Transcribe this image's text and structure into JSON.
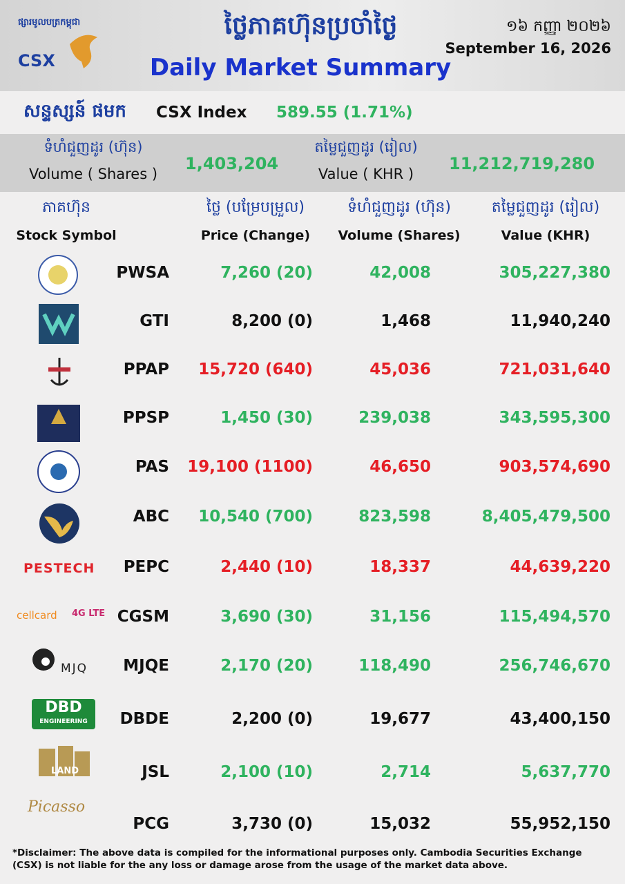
{
  "header": {
    "brand_khmer": "ផ្សារមូលបត្រកម្ពុជា",
    "brand": "CSX",
    "title_khmer": "ថ្លៃភាគហ៊ុនប្រចាំថ្ងៃ",
    "title": "Daily Market Summary",
    "date_khmer": "១៦ កញ្ញា ២០២៦",
    "date": "September 16, 2026"
  },
  "index": {
    "label_khmer": "សន្ទស្សន៍ ផមក",
    "label": "CSX Index",
    "value": "589.55 (1.71%)"
  },
  "summary": {
    "volume_label_khmer": "ទំហំជួញដូរ (ហ៊ុន)",
    "volume_label": "Volume ( Shares )",
    "volume": "1,403,204",
    "value_label_khmer": "តម្លៃជួញដូរ (រៀល)",
    "value_label": "Value ( KHR )",
    "value": "11,212,719,280"
  },
  "table": {
    "headers_khmer": [
      "ភាគហ៊ុន",
      "ថ្លៃ (បម្រែបម្រួល)",
      "ទំហំជួញដូរ (ហ៊ុន)",
      "តម្លៃជួញដូរ (រៀល)"
    ],
    "headers": [
      "Stock Symbol",
      "Price (Change)",
      "Volume (Shares)",
      "Value (KHR)"
    ],
    "rows": [
      {
        "cells": [
          "PWSA",
          "7,260 (20)",
          "42,008",
          "305,227,380"
        ],
        "color": "#2fb35f"
      },
      {
        "cells": [
          "GTI",
          "8,200 (0)",
          "1,468",
          "11,940,240"
        ],
        "color": "#111111"
      },
      {
        "cells": [
          "PPAP",
          "15,720 (640)",
          "45,036",
          "721,031,640"
        ],
        "color": "#e51e25"
      },
      {
        "cells": [
          "PPSP",
          "1,450 (30)",
          "239,038",
          "343,595,300"
        ],
        "color": "#2fb35f"
      },
      {
        "cells": [
          "PAS",
          "19,100 (1100)",
          "46,650",
          "903,574,690"
        ],
        "color": "#e51e25"
      },
      {
        "cells": [
          "ABC",
          "10,540 (700)",
          "823,598",
          "8,405,479,500"
        ],
        "color": "#2fb35f"
      },
      {
        "cells": [
          "PEPC",
          "2,440 (10)",
          "18,337",
          "44,639,220"
        ],
        "color": "#e51e25"
      },
      {
        "cells": [
          "CGSM",
          "3,690 (30)",
          "31,156",
          "115,494,570"
        ],
        "color": "#2fb35f"
      },
      {
        "cells": [
          "MJQE",
          "2,170 (20)",
          "118,490",
          "256,746,670"
        ],
        "color": "#2fb35f"
      },
      {
        "cells": [
          "DBDE",
          "2,200 (0)",
          "19,677",
          "43,400,150"
        ],
        "color": "#111111"
      },
      {
        "cells": [
          "JSL",
          "2,100 (10)",
          "2,714",
          "5,637,770"
        ],
        "color": "#2fb35f"
      },
      {
        "cells": [
          "PCG",
          "3,730 (0)",
          "15,032",
          "55,952,150"
        ],
        "color": "#111111"
      }
    ]
  },
  "logos": {
    "pestech": "PESTECH",
    "cellcard": "cellcard",
    "lte": "4G LTE",
    "mjq": "MJQ",
    "dbd": "DBD",
    "dbd_sub": "ENGINEERING",
    "jsl": "LAND",
    "pcg": "Picasso"
  },
  "disclaimer": "*Disclaimer: The above data is compiled for the informational purposes only. Cambodia Securities Exchange (CSX) is not liable for the any loss or damage arose from the usage of the market data above."
}
